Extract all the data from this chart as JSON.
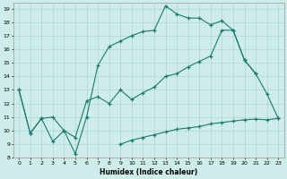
{
  "xlabel": "Humidex (Indice chaleur)",
  "bg_color": "#ceecea",
  "grid_color": "#aed6d2",
  "line_color": "#1a7a6e",
  "xlim": [
    -0.5,
    23.5
  ],
  "ylim": [
    8,
    19.4
  ],
  "xticks": [
    0,
    1,
    2,
    3,
    4,
    5,
    6,
    7,
    8,
    9,
    10,
    11,
    12,
    13,
    14,
    15,
    16,
    17,
    18,
    19,
    20,
    21,
    22,
    23
  ],
  "yticks": [
    8,
    9,
    10,
    11,
    12,
    13,
    14,
    15,
    16,
    17,
    18,
    19
  ],
  "line1_x": [
    0,
    1,
    2,
    3,
    4,
    5,
    6,
    7,
    8,
    9,
    10,
    11,
    12,
    13,
    14,
    15,
    16,
    17,
    18,
    19,
    20,
    21
  ],
  "line1_y": [
    13,
    9.8,
    10.9,
    9.2,
    10.0,
    8.3,
    11.0,
    14.8,
    16.2,
    16.6,
    17.0,
    17.3,
    17.4,
    19.2,
    18.6,
    18.3,
    18.3,
    17.8,
    18.1,
    17.4,
    15.2,
    14.2
  ],
  "line2_x": [
    0,
    1,
    2,
    3,
    4,
    5,
    6,
    7,
    8,
    9,
    10,
    11,
    12,
    13,
    14,
    15,
    16,
    17,
    18,
    19,
    20,
    21,
    22,
    23
  ],
  "line2_y": [
    13,
    9.8,
    10.9,
    11.0,
    10.0,
    9.5,
    12.2,
    12.5,
    12.0,
    13.0,
    12.3,
    12.8,
    13.2,
    14.0,
    14.2,
    14.7,
    15.1,
    15.5,
    17.4,
    17.4,
    15.2,
    14.2,
    12.7,
    10.9
  ],
  "line3_x": [
    9,
    10,
    11,
    12,
    13,
    14,
    15,
    16,
    17,
    18,
    19,
    20,
    21,
    22,
    23
  ],
  "line3_y": [
    9.0,
    9.3,
    9.5,
    9.7,
    9.9,
    10.1,
    10.2,
    10.3,
    10.5,
    10.6,
    10.7,
    10.8,
    10.85,
    10.8,
    10.9
  ]
}
